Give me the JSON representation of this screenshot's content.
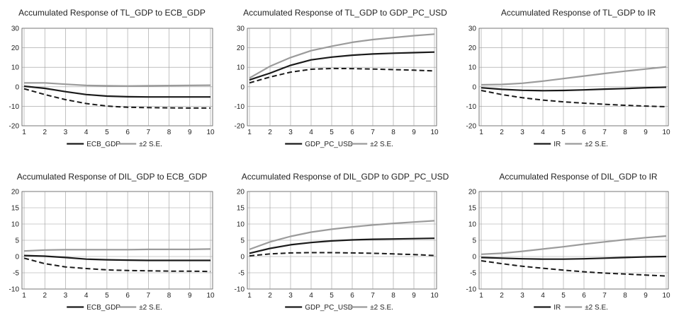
{
  "colors": {
    "response": "#1a1a1a",
    "se_upper": "#9b9b9b",
    "se_lower": "#1a1a1a",
    "grid": "#9a9a9a",
    "axis": "#555555",
    "text": "#222222"
  },
  "chart_data": [
    {
      "type": "line",
      "title": "Accumulated Response of TL_GDP to ECB_GDP",
      "x": [
        1,
        2,
        3,
        4,
        5,
        6,
        7,
        8,
        9,
        10
      ],
      "ylim": [
        -20,
        30
      ],
      "yticks": [
        30,
        20,
        10,
        0,
        -10,
        -20
      ],
      "grid": true,
      "legend": [
        "ECB_GDP",
        "±2 S.E."
      ],
      "series": [
        {
          "name": "ECB_GDP",
          "values": [
            0.3,
            -0.8,
            -2.5,
            -4.0,
            -4.8,
            -5.1,
            -5.2,
            -5.2,
            -5.2,
            -5.2
          ]
        },
        {
          "name": "±2 S.E.",
          "values": [
            2.0,
            2.0,
            1.3,
            0.7,
            0.5,
            0.4,
            0.5,
            0.6,
            0.7,
            0.8
          ]
        },
        {
          "values": [
            -1.0,
            -4.0,
            -6.6,
            -8.6,
            -9.9,
            -10.5,
            -10.7,
            -10.8,
            -10.9,
            -10.9
          ]
        }
      ]
    },
    {
      "type": "line",
      "title": "Accumulated Response of TL_GDP to GDP_PC_USD",
      "x": [
        1,
        2,
        3,
        4,
        5,
        6,
        7,
        8,
        9,
        10
      ],
      "ylim": [
        -20,
        30
      ],
      "yticks": [
        30,
        20,
        10,
        0,
        -10,
        -20
      ],
      "grid": true,
      "legend": [
        "GDP_PC_USD",
        "±2 S.E."
      ],
      "series": [
        {
          "name": "GDP_PC_USD",
          "values": [
            3.5,
            7.0,
            11.0,
            13.8,
            15.2,
            16.2,
            16.8,
            17.2,
            17.5,
            17.8
          ]
        },
        {
          "name": "±2 S.E.",
          "values": [
            4.5,
            10.5,
            15.0,
            18.5,
            20.8,
            22.8,
            24.2,
            25.2,
            26.2,
            27.0
          ]
        },
        {
          "values": [
            2.0,
            5.0,
            7.5,
            9.0,
            9.4,
            9.3,
            9.1,
            8.8,
            8.5,
            8.1
          ]
        }
      ]
    },
    {
      "type": "line",
      "title": "Accumulated Response of TL_GDP to IR",
      "x": [
        1,
        2,
        3,
        4,
        5,
        6,
        7,
        8,
        9,
        10
      ],
      "ylim": [
        -20,
        30
      ],
      "yticks": [
        30,
        20,
        10,
        0,
        -10,
        -20
      ],
      "grid": true,
      "legend": [
        "IR",
        "±2 S.E."
      ],
      "series": [
        {
          "name": "IR",
          "values": [
            -0.5,
            -1.3,
            -1.8,
            -2.0,
            -1.9,
            -1.6,
            -1.2,
            -0.9,
            -0.5,
            -0.2
          ]
        },
        {
          "name": "±2 S.E.",
          "values": [
            1.0,
            1.2,
            1.8,
            2.9,
            4.2,
            5.5,
            6.8,
            8.0,
            9.1,
            10.2
          ]
        },
        {
          "values": [
            -1.9,
            -4.0,
            -5.6,
            -6.8,
            -7.7,
            -8.4,
            -9.0,
            -9.5,
            -9.9,
            -10.2
          ]
        }
      ]
    },
    {
      "type": "line",
      "title": "Accumulated Response of DIL_GDP to ECB_GDP",
      "x": [
        1,
        2,
        3,
        4,
        5,
        6,
        7,
        8,
        9,
        10
      ],
      "ylim": [
        -10,
        20
      ],
      "yticks": [
        20,
        15,
        10,
        5,
        0,
        -5,
        -10
      ],
      "grid": true,
      "legend": [
        "ECB_GDP",
        "±2 S.E."
      ],
      "series": [
        {
          "name": "ECB_GDP",
          "values": [
            0.3,
            0.1,
            -0.3,
            -0.8,
            -1.0,
            -1.1,
            -1.2,
            -1.2,
            -1.2,
            -1.2
          ]
        },
        {
          "name": "±2 S.E.",
          "values": [
            1.7,
            2.0,
            2.1,
            2.1,
            2.1,
            2.1,
            2.2,
            2.2,
            2.2,
            2.3
          ]
        },
        {
          "values": [
            -0.5,
            -2.2,
            -3.2,
            -3.7,
            -4.1,
            -4.3,
            -4.4,
            -4.5,
            -4.5,
            -4.6
          ]
        }
      ]
    },
    {
      "type": "line",
      "title": "Accumulated Response of DIL_GDP to GDP_PC_USD",
      "x": [
        1,
        2,
        3,
        4,
        5,
        6,
        7,
        8,
        9,
        10
      ],
      "ylim": [
        -10,
        20
      ],
      "yticks": [
        20,
        15,
        10,
        5,
        0,
        -5,
        -10
      ],
      "grid": true,
      "legend": [
        "GDP_PC_USD",
        "±2 S.E."
      ],
      "series": [
        {
          "name": "GDP_PC_USD",
          "values": [
            1.0,
            2.5,
            3.6,
            4.3,
            4.8,
            5.1,
            5.3,
            5.4,
            5.5,
            5.6
          ]
        },
        {
          "name": "±2 S.E.",
          "values": [
            2.2,
            4.5,
            6.2,
            7.5,
            8.4,
            9.1,
            9.7,
            10.2,
            10.6,
            11.0
          ]
        },
        {
          "values": [
            0.2,
            0.8,
            1.1,
            1.2,
            1.2,
            1.1,
            1.0,
            0.8,
            0.6,
            0.3
          ]
        }
      ]
    },
    {
      "type": "line",
      "title": "Accumulated Response of DIL_GDP to IR",
      "x": [
        1,
        2,
        3,
        4,
        5,
        6,
        7,
        8,
        9,
        10
      ],
      "ylim": [
        -10,
        20
      ],
      "yticks": [
        20,
        15,
        10,
        5,
        0,
        -5,
        -10
      ],
      "grid": true,
      "legend": [
        "IR",
        "±2 S.E."
      ],
      "series": [
        {
          "name": "IR",
          "values": [
            -0.3,
            -0.5,
            -0.7,
            -0.8,
            -0.8,
            -0.7,
            -0.5,
            -0.3,
            -0.1,
            0.0
          ]
        },
        {
          "name": "±2 S.E.",
          "values": [
            0.7,
            1.0,
            1.6,
            2.3,
            3.0,
            3.8,
            4.5,
            5.2,
            5.8,
            6.3
          ]
        },
        {
          "values": [
            -1.3,
            -2.2,
            -3.0,
            -3.6,
            -4.2,
            -4.7,
            -5.1,
            -5.4,
            -5.7,
            -6.0
          ]
        }
      ]
    }
  ]
}
